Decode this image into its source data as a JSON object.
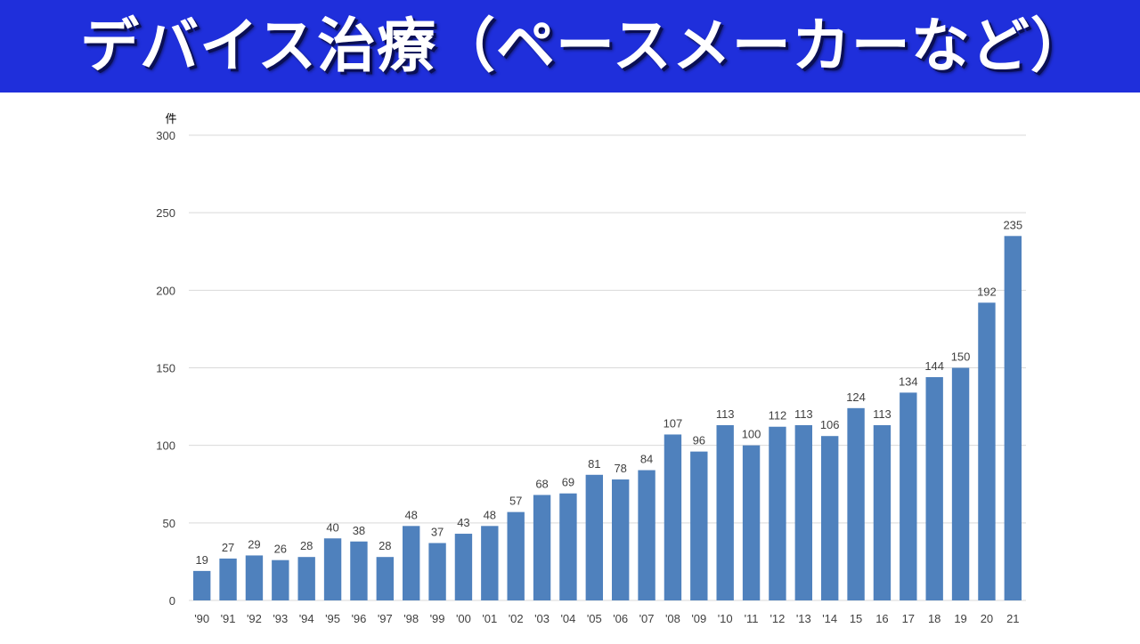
{
  "header": {
    "title": "デバイス治療（ペースメーカーなど）"
  },
  "colors": {
    "banner": "#1f2fdb",
    "bar": "#4f81bd",
    "grid": "#d9d9d9",
    "text": "#404040"
  },
  "chart_data": {
    "type": "bar",
    "title": "",
    "xlabel": "",
    "ylabel": "件",
    "ylim": [
      0,
      300
    ],
    "yticks": [
      0,
      50,
      100,
      150,
      200,
      250,
      300
    ],
    "grid": true,
    "categories": [
      "'90",
      "'91",
      "'92",
      "'93",
      "'94",
      "'95",
      "'96",
      "'97",
      "'98",
      "'99",
      "'00",
      "'01",
      "'02",
      "'03",
      "'04",
      "'05",
      "'06",
      "'07",
      "'08",
      "'09",
      "'10",
      "'11",
      "'12",
      "'13",
      "'14",
      "15",
      "16",
      "17",
      "18",
      "19",
      "20",
      "21"
    ],
    "values": [
      19,
      27,
      29,
      26,
      28,
      40,
      38,
      28,
      48,
      37,
      43,
      48,
      57,
      68,
      69,
      81,
      78,
      84,
      107,
      96,
      113,
      100,
      112,
      113,
      106,
      124,
      113,
      134,
      144,
      150,
      192,
      235
    ]
  }
}
